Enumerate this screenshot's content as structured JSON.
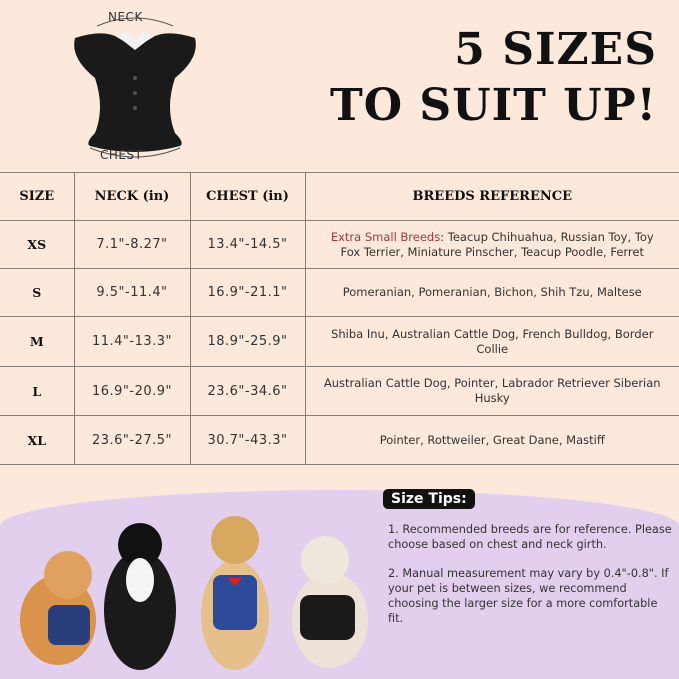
{
  "diagram": {
    "neck_label": "NECK",
    "chest_label": "CHEST"
  },
  "title": {
    "line1": "5 SIZES",
    "line2": "TO SUIT UP!"
  },
  "table": {
    "headers": [
      "SIZE",
      "NECK (in)",
      "CHEST (in)",
      "BREEDS REFERENCE"
    ],
    "rows": [
      {
        "size": "XS",
        "neck": "7.1\"-8.27\"",
        "chest": "13.4\"-14.5\"",
        "breeds_prefix": "Extra Small Breeds",
        "breeds": ": Teacup Chihuahua, Russian Toy, Toy Fox Terrier, Miniature Pinscher, Teacup Poodle, Ferret"
      },
      {
        "size": "S",
        "neck": "9.5\"-11.4\"",
        "chest": "16.9\"-21.1\"",
        "breeds": "Pomeranian, Pomeranian, Bichon, Shih Tzu, Maltese"
      },
      {
        "size": "M",
        "neck": "11.4\"-13.3\"",
        "chest": "18.9\"-25.9\"",
        "breeds": "Shiba Inu, Australian Cattle Dog, French Bulldog, Border Collie"
      },
      {
        "size": "L",
        "neck": "16.9\"-20.9\"",
        "chest": "23.6\"-34.6\"",
        "breeds": "Australian Cattle Dog, Pointer, Labrador Retriever Siberian Husky"
      },
      {
        "size": "XL",
        "neck": "23.6\"-27.5\"",
        "chest": "30.7\"-43.3\"",
        "breeds": "Pointer, Rottweiler, Great Dane, Mastiff"
      }
    ]
  },
  "tips": {
    "heading": "Size Tips:",
    "items": [
      "1. Recommended breeds are for reference. Please choose based on chest and neck girth.",
      "2. Manual measurement may vary by 0.4\"-0.8\". If your pet is between sizes, we recommend choosing the larger size for a more comfortable fit."
    ]
  },
  "colors": {
    "background": "#fde8dc",
    "lavender": "#e2cfee",
    "accent": "#a5383b"
  }
}
